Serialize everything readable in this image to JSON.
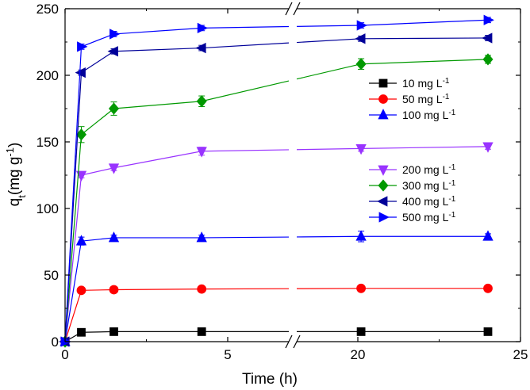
{
  "chart_data": {
    "type": "line",
    "title": "",
    "xlabel": "Time (h)",
    "ylabel": {
      "base": "q",
      "sub": "t",
      "unit": "(mg g",
      "sup": "-1",
      "close": ")"
    },
    "xlim_left": [
      0,
      7
    ],
    "xlim_right": [
      18,
      25
    ],
    "ylim": [
      0,
      250
    ],
    "x_break": true,
    "x_ticks": [
      0,
      5,
      20,
      25
    ],
    "y_ticks": [
      0,
      50,
      100,
      150,
      200,
      250
    ],
    "x": [
      0,
      0.5,
      1.5,
      4.2,
      20.1,
      24
    ],
    "legend_groups": [
      [
        "10 mg L",
        "50 mg L",
        "100 mg L"
      ],
      [
        "200 mg L",
        "300 mg L",
        "400 mg L",
        "500 mg L"
      ]
    ],
    "legend_unit_sup": "-1",
    "series": [
      {
        "name": "10 mg L",
        "label": "10 mg L",
        "color": "#000000",
        "marker": "square",
        "values": [
          0,
          7,
          7.5,
          7.5,
          7.5,
          7.5
        ],
        "errors": [
          0,
          1,
          1,
          1,
          1,
          1
        ]
      },
      {
        "name": "50 mg L",
        "label": "50 mg L",
        "color": "#ff0000",
        "marker": "circle",
        "values": [
          0,
          38.5,
          39,
          39.5,
          40,
          40
        ],
        "errors": [
          0,
          1,
          1,
          1,
          1,
          1
        ]
      },
      {
        "name": "100 mg L",
        "label": "100 mg L",
        "color": "#0000ff",
        "marker": "triangle-up",
        "values": [
          0,
          75.5,
          78,
          78,
          79,
          79
        ],
        "errors": [
          0,
          3,
          2,
          2,
          4,
          2
        ]
      },
      {
        "name": "200 mg L",
        "label": "200 mg L",
        "color": "#9933ff",
        "marker": "triangle-down",
        "values": [
          0,
          125,
          130.5,
          143,
          145,
          146.5
        ],
        "errors": [
          0,
          2,
          2,
          3,
          2,
          2
        ]
      },
      {
        "name": "300 mg L",
        "label": "300 mg L",
        "color": "#009900",
        "marker": "diamond",
        "values": [
          0,
          155.5,
          175,
          180.5,
          208.5,
          212
        ],
        "errors": [
          0,
          6,
          5,
          4,
          4,
          3
        ]
      },
      {
        "name": "400 mg L",
        "label": "400 mg L",
        "color": "#000099",
        "marker": "triangle-left",
        "values": [
          0,
          202,
          218,
          220.5,
          227.5,
          228
        ],
        "errors": [
          0,
          2,
          2,
          2,
          2,
          2
        ]
      },
      {
        "name": "500 mg L",
        "label": "500 mg L",
        "color": "#0000ff",
        "marker": "triangle-right",
        "values": [
          0,
          221.5,
          231,
          235.5,
          237.5,
          241.5
        ],
        "errors": [
          0,
          2,
          2,
          2,
          2,
          2
        ]
      }
    ]
  }
}
